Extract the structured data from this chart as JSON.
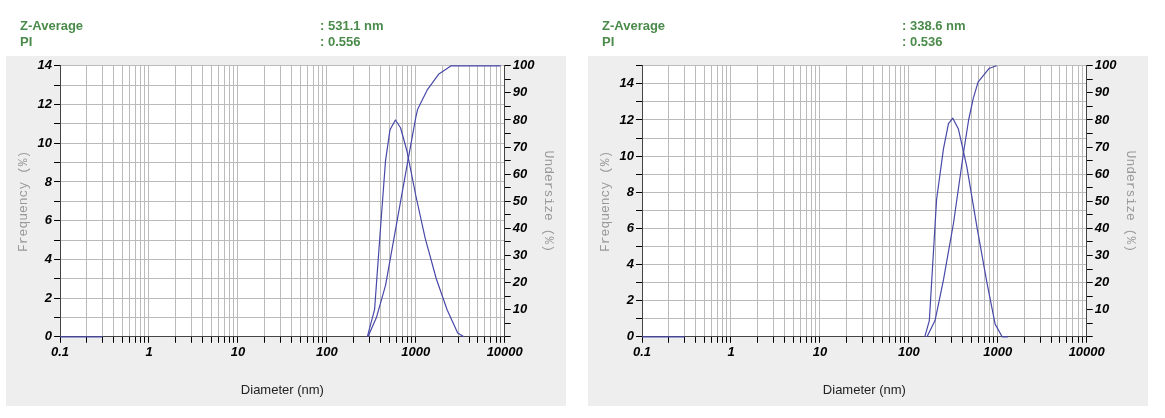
{
  "chart_data": [
    {
      "type": "line",
      "annotations": [
        "Z-Average",
        ": 531.1 nm",
        "PI",
        ": 0.556"
      ],
      "xlabel": "Diameter (nm)",
      "ylabel": "Frequency (%)",
      "y2label": "Undersize (%)",
      "log": "x",
      "grid": true,
      "marker": "none",
      "xlim": [
        0.1,
        10000
      ],
      "xticks": [
        0.1,
        {
          "value": 0.2,
          "label": null
        },
        {
          "value": 0.3,
          "label": null
        },
        {
          "value": 0.4,
          "label": null
        },
        {
          "value": 0.5,
          "label": null
        },
        {
          "value": 0.6,
          "label": null
        },
        {
          "value": 0.7,
          "label": null
        },
        {
          "value": 0.8,
          "label": null
        },
        {
          "value": 0.9,
          "label": null
        },
        1,
        {
          "value": 2,
          "label": null
        },
        {
          "value": 3,
          "label": null
        },
        {
          "value": 4,
          "label": null
        },
        {
          "value": 5,
          "label": null
        },
        {
          "value": 6,
          "label": null
        },
        {
          "value": 7,
          "label": null
        },
        {
          "value": 8,
          "label": null
        },
        {
          "value": 9,
          "label": null
        },
        10,
        {
          "value": 20,
          "label": null
        },
        {
          "value": 30,
          "label": null
        },
        {
          "value": 40,
          "label": null
        },
        {
          "value": 50,
          "label": null
        },
        {
          "value": 60,
          "label": null
        },
        {
          "value": 70,
          "label": null
        },
        {
          "value": 80,
          "label": null
        },
        {
          "value": 90,
          "label": null
        },
        100,
        {
          "value": 200,
          "label": null
        },
        {
          "value": 300,
          "label": null
        },
        {
          "value": 400,
          "label": null
        },
        {
          "value": 500,
          "label": null
        },
        {
          "value": 600,
          "label": null
        },
        {
          "value": 700,
          "label": null
        },
        {
          "value": 800,
          "label": null
        },
        {
          "value": 900,
          "label": null
        },
        1000,
        {
          "value": 2000,
          "label": null
        },
        {
          "value": 3000,
          "label": null
        },
        {
          "value": 4000,
          "label": null
        },
        {
          "value": 5000,
          "label": null
        },
        {
          "value": 6000,
          "label": null
        },
        {
          "value": 7000,
          "label": null
        },
        {
          "value": 8000,
          "label": null
        },
        {
          "value": 9000,
          "label": null
        },
        10000
      ],
      "ylim": [
        0,
        14
      ],
      "yticks": [
        0,
        {
          "value": 1,
          "label": null
        },
        2,
        {
          "value": 3,
          "label": null
        },
        4,
        {
          "value": 5,
          "label": null
        },
        6,
        {
          "value": 7,
          "label": null
        },
        8,
        {
          "value": 9,
          "label": null
        },
        10,
        {
          "value": 11,
          "label": null
        },
        12,
        {
          "value": 13,
          "label": null
        },
        14
      ],
      "y2lim": [
        0,
        100
      ],
      "y2ticks": [
        {
          "value": 0,
          "label": null
        },
        {
          "value": 5,
          "label": null
        },
        10,
        {
          "value": 15,
          "label": null
        },
        20,
        {
          "value": 25,
          "label": null
        },
        30,
        {
          "value": 35,
          "label": null
        },
        40,
        {
          "value": 45,
          "label": null
        },
        50,
        {
          "value": 55,
          "label": null
        },
        60,
        {
          "value": 65,
          "label": null
        },
        70,
        {
          "value": 75,
          "label": null
        },
        80,
        {
          "value": 85,
          "label": null
        },
        90,
        {
          "value": 95,
          "label": null
        },
        100
      ],
      "series": [
        {
          "color": "#4848a8",
          "x": [
            0.1,
            0.3,
            1,
            285,
            344,
            398,
            457,
            513,
            590,
            674,
            795,
            1000,
            1275,
            1700,
            2250,
            2960,
            3470
          ],
          "values": [
            0,
            0,
            null,
            0,
            1.4,
            5.4,
            9.1,
            10.7,
            11.2,
            10.8,
            9.6,
            7.3,
            5.1,
            3.0,
            1.4,
            0.2,
            0
          ]
        },
        {
          "color": "#4848a8",
          "axis": "y2",
          "x": [
            290,
            360,
            457,
            603,
            795,
            1000,
            1050,
            1340,
            1820,
            2500,
            9000
          ],
          "values": [
            0,
            7,
            19,
            41,
            63,
            81,
            84,
            91,
            97,
            100,
            100
          ]
        }
      ]
    },
    {
      "type": "line",
      "annotations": [
        "Z-Average",
        ": 338.6 nm",
        "PI",
        ": 0.536"
      ],
      "xlabel": "Diameter (nm)",
      "ylabel": "Frequency (%)",
      "y2label": "Undersize (%)",
      "log": "x",
      "grid": true,
      "marker": "none",
      "xlim": [
        0.1,
        10000
      ],
      "xticks": [
        0.1,
        {
          "value": 0.2,
          "label": null
        },
        {
          "value": 0.3,
          "label": null
        },
        {
          "value": 0.4,
          "label": null
        },
        {
          "value": 0.5,
          "label": null
        },
        {
          "value": 0.6,
          "label": null
        },
        {
          "value": 0.7,
          "label": null
        },
        {
          "value": 0.8,
          "label": null
        },
        {
          "value": 0.9,
          "label": null
        },
        1,
        {
          "value": 2,
          "label": null
        },
        {
          "value": 3,
          "label": null
        },
        {
          "value": 4,
          "label": null
        },
        {
          "value": 5,
          "label": null
        },
        {
          "value": 6,
          "label": null
        },
        {
          "value": 7,
          "label": null
        },
        {
          "value": 8,
          "label": null
        },
        {
          "value": 9,
          "label": null
        },
        10,
        {
          "value": 20,
          "label": null
        },
        {
          "value": 30,
          "label": null
        },
        {
          "value": 40,
          "label": null
        },
        {
          "value": 50,
          "label": null
        },
        {
          "value": 60,
          "label": null
        },
        {
          "value": 70,
          "label": null
        },
        {
          "value": 80,
          "label": null
        },
        {
          "value": 90,
          "label": null
        },
        100,
        {
          "value": 200,
          "label": null
        },
        {
          "value": 300,
          "label": null
        },
        {
          "value": 400,
          "label": null
        },
        {
          "value": 500,
          "label": null
        },
        {
          "value": 600,
          "label": null
        },
        {
          "value": 700,
          "label": null
        },
        {
          "value": 800,
          "label": null
        },
        {
          "value": 900,
          "label": null
        },
        1000,
        {
          "value": 2000,
          "label": null
        },
        {
          "value": 3000,
          "label": null
        },
        {
          "value": 4000,
          "label": null
        },
        {
          "value": 5000,
          "label": null
        },
        {
          "value": 6000,
          "label": null
        },
        {
          "value": 7000,
          "label": null
        },
        {
          "value": 8000,
          "label": null
        },
        {
          "value": 9000,
          "label": null
        },
        10000
      ],
      "ylim": [
        0,
        15
      ],
      "yticks": [
        0,
        {
          "value": 1,
          "label": null
        },
        2,
        {
          "value": 3,
          "label": null
        },
        4,
        {
          "value": 5,
          "label": null
        },
        6,
        {
          "value": 7,
          "label": null
        },
        8,
        {
          "value": 9,
          "label": null
        },
        10,
        {
          "value": 11,
          "label": null
        },
        12,
        {
          "value": 13,
          "label": null
        },
        14,
        {
          "value": 15,
          "label": null
        }
      ],
      "y2lim": [
        0,
        100
      ],
      "y2ticks": [
        {
          "value": 0,
          "label": null
        },
        {
          "value": 5,
          "label": null
        },
        10,
        {
          "value": 15,
          "label": null
        },
        20,
        {
          "value": 25,
          "label": null
        },
        30,
        {
          "value": 35,
          "label": null
        },
        40,
        {
          "value": 45,
          "label": null
        },
        50,
        {
          "value": 55,
          "label": null
        },
        60,
        {
          "value": 65,
          "label": null
        },
        70,
        {
          "value": 75,
          "label": null
        },
        80,
        {
          "value": 85,
          "label": null
        },
        90,
        {
          "value": 95,
          "label": null
        },
        100
      ],
      "series": [
        {
          "color": "#4848a8",
          "x": [
            0.1,
            0.3,
            1,
            151,
            170,
            205,
            245,
            279,
            312,
            361,
            449,
            582,
            755,
            934,
            1120,
            1300
          ],
          "values": [
            0,
            0,
            null,
            0,
            0.9,
            7.6,
            10.4,
            11.8,
            12.1,
            11.5,
            9.4,
            6.1,
            3.0,
            0.7,
            0,
            0
          ]
        },
        {
          "color": "#4848a8",
          "axis": "y2",
          "x": [
            160,
            197,
            245,
            318,
            412,
            470,
            530,
            600,
            795,
            970
          ],
          "values": [
            0,
            6,
            21,
            42,
            68,
            80,
            88,
            94,
            99,
            100
          ]
        }
      ]
    }
  ]
}
